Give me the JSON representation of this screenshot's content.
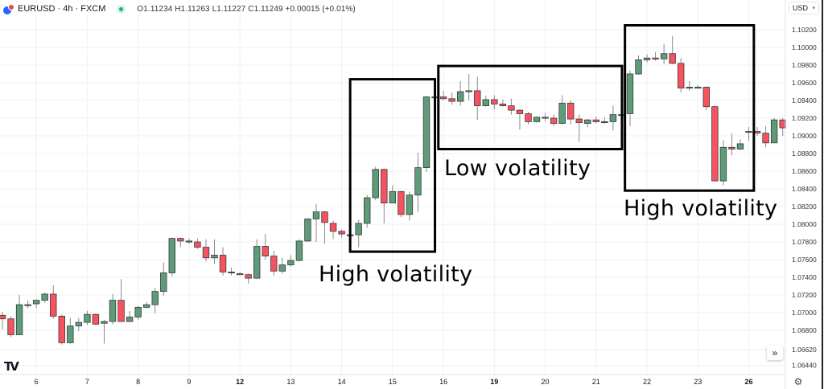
{
  "header": {
    "symbol": "EURUSD · 4h · FXCM",
    "ohlc": "O1.11234 H1.11263 L1.11227 C1.11249 +0.00015 (+0.01%)",
    "market_status": "open"
  },
  "currency_button": "USD",
  "scroll_button": "»",
  "colors": {
    "up": "#5d9b79",
    "down": "#f7525f",
    "border": "#3a3a3a",
    "grid": "#eef0f4",
    "box": "#000000"
  },
  "chart_data": {
    "type": "candlestick",
    "title": "EURUSD · 4h · FXCM",
    "ylabel": "USD",
    "ylim": [
      1.0636,
      1.1041
    ],
    "grid": true,
    "y_ticks": [
      "1.10200",
      "1.10000",
      "1.09800",
      "1.09600",
      "1.09400",
      "1.09200",
      "1.09000",
      "1.08800",
      "1.08600",
      "1.08400",
      "1.08200",
      "1.08000",
      "1.07800",
      "1.07600",
      "1.07400",
      "1.07200",
      "1.07000",
      "1.06800",
      "1.06620",
      "1.06440"
    ],
    "x_ticks": [
      {
        "label": "6",
        "index": 4,
        "bold": false
      },
      {
        "label": "7",
        "index": 10,
        "bold": false
      },
      {
        "label": "8",
        "index": 16,
        "bold": false
      },
      {
        "label": "9",
        "index": 22,
        "bold": false
      },
      {
        "label": "12",
        "index": 28,
        "bold": true
      },
      {
        "label": "13",
        "index": 34,
        "bold": false
      },
      {
        "label": "14",
        "index": 40,
        "bold": false
      },
      {
        "label": "15",
        "index": 46,
        "bold": false
      },
      {
        "label": "16",
        "index": 52,
        "bold": false
      },
      {
        "label": "19",
        "index": 58,
        "bold": true
      },
      {
        "label": "20",
        "index": 64,
        "bold": false
      },
      {
        "label": "21",
        "index": 70,
        "bold": false
      },
      {
        "label": "22",
        "index": 76,
        "bold": false
      },
      {
        "label": "23",
        "index": 82,
        "bold": false
      },
      {
        "label": "26",
        "index": 88,
        "bold": true
      }
    ],
    "ohlc_columns": [
      "open",
      "high",
      "low",
      "close"
    ],
    "candles": [
      [
        1.0697,
        1.0701,
        1.0681,
        1.0693
      ],
      [
        1.0693,
        1.0696,
        1.0672,
        1.0675
      ],
      [
        1.0675,
        1.072,
        1.0675,
        1.0709
      ],
      [
        1.0709,
        1.0714,
        1.0705,
        1.0709
      ],
      [
        1.071,
        1.0715,
        1.0705,
        1.0714
      ],
      [
        1.0714,
        1.0723,
        1.0711,
        1.0721
      ],
      [
        1.0721,
        1.0731,
        1.0693,
        1.0696
      ],
      [
        1.0696,
        1.0698,
        1.0664,
        1.0666
      ],
      [
        1.0666,
        1.0694,
        1.0665,
        1.0685
      ],
      [
        1.0685,
        1.0694,
        1.0679,
        1.0689
      ],
      [
        1.0689,
        1.0702,
        1.0686,
        1.0698
      ],
      [
        1.0698,
        1.0699,
        1.0686,
        1.0687
      ],
      [
        1.0688,
        1.0692,
        1.0665,
        1.069
      ],
      [
        1.069,
        1.0721,
        1.0687,
        1.0714
      ],
      [
        1.0714,
        1.0738,
        1.069,
        1.069
      ],
      [
        1.069,
        1.0702,
        1.0689,
        1.0695
      ],
      [
        1.0695,
        1.0708,
        1.0692,
        1.0706
      ],
      [
        1.0706,
        1.0712,
        1.0705,
        1.0709
      ],
      [
        1.0709,
        1.0728,
        1.0699,
        1.0724
      ],
      [
        1.0724,
        1.0757,
        1.0719,
        1.0745
      ],
      [
        1.0745,
        1.0785,
        1.0741,
        1.0784
      ],
      [
        1.0784,
        1.0785,
        1.0774,
        1.0781
      ],
      [
        1.0781,
        1.0784,
        1.0778,
        1.0781
      ],
      [
        1.078,
        1.0784,
        1.0772,
        1.0774
      ],
      [
        1.0774,
        1.0783,
        1.0758,
        1.0762
      ],
      [
        1.0762,
        1.0783,
        1.0755,
        1.0765
      ],
      [
        1.0765,
        1.0774,
        1.0742,
        1.0746
      ],
      [
        1.0746,
        1.0751,
        1.0742,
        1.0746
      ],
      [
        1.0744,
        1.0746,
        1.0743,
        1.0743
      ],
      [
        1.0743,
        1.0744,
        1.0733,
        1.0739
      ],
      [
        1.0739,
        1.0783,
        1.0738,
        1.0775
      ],
      [
        1.0775,
        1.0789,
        1.076,
        1.0764
      ],
      [
        1.0764,
        1.077,
        1.0742,
        1.0747
      ],
      [
        1.0747,
        1.0762,
        1.0744,
        1.0754
      ],
      [
        1.0754,
        1.0765,
        1.0752,
        1.0759
      ],
      [
        1.0759,
        1.0783,
        1.0758,
        1.0781
      ],
      [
        1.0781,
        1.0807,
        1.078,
        1.0806
      ],
      [
        1.0806,
        1.0823,
        1.078,
        1.0814
      ],
      [
        1.0814,
        1.0815,
        1.0778,
        1.0802
      ],
      [
        1.0801,
        1.0804,
        1.0783,
        1.0792
      ],
      [
        1.0792,
        1.0794,
        1.0785,
        1.0789
      ],
      [
        1.0788,
        1.079,
        1.0786,
        1.0788
      ],
      [
        1.0788,
        1.0805,
        1.0774,
        1.0801
      ],
      [
        1.0801,
        1.0833,
        1.0796,
        1.083
      ],
      [
        1.083,
        1.0865,
        1.0827,
        1.0862
      ],
      [
        1.0862,
        1.0863,
        1.0801,
        1.0824
      ],
      [
        1.0824,
        1.0844,
        1.0824,
        1.0837
      ],
      [
        1.0837,
        1.0838,
        1.0808,
        1.0811
      ],
      [
        1.0811,
        1.0837,
        1.0804,
        1.0833
      ],
      [
        1.0833,
        1.0881,
        1.0814,
        1.0864
      ],
      [
        1.0864,
        1.0945,
        1.0859,
        1.0944
      ],
      [
        1.0944,
        1.0951,
        1.094,
        1.0944
      ],
      [
        1.0944,
        1.0951,
        1.094,
        1.0942
      ],
      [
        1.0942,
        1.0949,
        1.0935,
        1.0939
      ],
      [
        1.0939,
        1.0962,
        1.0934,
        1.095
      ],
      [
        1.0951,
        1.097,
        1.094,
        1.0951
      ],
      [
        1.0951,
        1.0967,
        1.0918,
        1.0934
      ],
      [
        1.0934,
        1.0945,
        1.0933,
        1.0941
      ],
      [
        1.0941,
        1.0946,
        1.093,
        1.0936
      ],
      [
        1.0936,
        1.0941,
        1.0933,
        1.0934
      ],
      [
        1.0934,
        1.0942,
        1.0924,
        1.0929
      ],
      [
        1.0929,
        1.093,
        1.0907,
        1.0925
      ],
      [
        1.0925,
        1.0927,
        1.0913,
        1.0916
      ],
      [
        1.0916,
        1.0922,
        1.0915,
        1.0921
      ],
      [
        1.0921,
        1.0926,
        1.0916,
        1.092
      ],
      [
        1.092,
        1.0924,
        1.0911,
        1.0914
      ],
      [
        1.0914,
        1.0946,
        1.0913,
        1.0937
      ],
      [
        1.0937,
        1.094,
        1.0913,
        1.0919
      ],
      [
        1.0919,
        1.0924,
        1.0893,
        1.0915
      ],
      [
        1.0914,
        1.0919,
        1.091,
        1.0918
      ],
      [
        1.0918,
        1.0922,
        1.0914,
        1.0916
      ],
      [
        1.0916,
        1.0921,
        1.0914,
        1.0916
      ],
      [
        1.0916,
        1.0934,
        1.0906,
        1.0924
      ],
      [
        1.0924,
        1.0926,
        1.0923,
        1.0924
      ],
      [
        1.0925,
        1.0974,
        1.0911,
        1.097
      ],
      [
        1.097,
        1.0991,
        1.0969,
        1.0986
      ],
      [
        1.0986,
        1.0992,
        1.0983,
        1.0988
      ],
      [
        1.0988,
        1.0995,
        1.0985,
        1.0987
      ],
      [
        1.0987,
        1.1004,
        1.0981,
        1.0993
      ],
      [
        1.0993,
        1.1013,
        1.0981,
        1.0982
      ],
      [
        1.0982,
        1.0988,
        1.0949,
        1.0954
      ],
      [
        1.0954,
        1.0962,
        1.0951,
        1.0955
      ],
      [
        1.0955,
        1.0957,
        1.0954,
        1.0955
      ],
      [
        1.0955,
        1.0956,
        1.0929,
        1.0933
      ],
      [
        1.0933,
        1.0934,
        1.0849,
        1.0849
      ],
      [
        1.0849,
        1.0895,
        1.0844,
        1.0887
      ],
      [
        1.0887,
        1.0903,
        1.0878,
        1.0885
      ],
      [
        1.0885,
        1.0896,
        1.0884,
        1.0891
      ],
      [
        1.0905,
        1.091,
        1.0894,
        1.0905
      ],
      [
        1.0905,
        1.091,
        1.09,
        1.0903
      ],
      [
        1.0903,
        1.0911,
        1.0887,
        1.0892
      ],
      [
        1.0892,
        1.092,
        1.0892,
        1.0918
      ],
      [
        1.0918,
        1.092,
        1.09,
        1.0909
      ]
    ],
    "annotations": [
      {
        "label": "High volatility",
        "from_index": 41.0,
        "to_index": 51.0,
        "price_top": 1.0964,
        "price_bottom": 1.0769
      },
      {
        "label": "Low volatility",
        "from_index": 51.4,
        "to_index": 73.05,
        "price_top": 1.0979,
        "price_bottom": 1.0885
      },
      {
        "label": "High volatility",
        "from_index": 73.4,
        "to_index": 88.6,
        "price_top": 1.1025,
        "price_bottom": 1.0838
      }
    ]
  }
}
